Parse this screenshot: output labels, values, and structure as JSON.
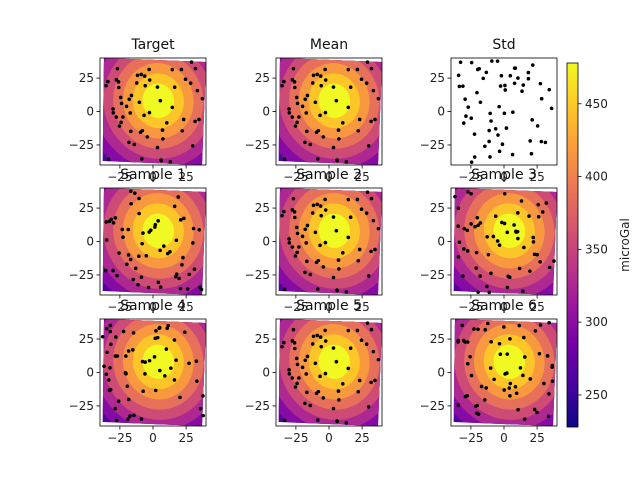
{
  "chart_data": {
    "type": "heatmap",
    "colormap": "plasma",
    "point_color": "#000000",
    "xticks": [
      -25,
      0,
      25
    ],
    "yticks": [
      25,
      0,
      -25
    ],
    "xlim": [
      -40,
      40
    ],
    "ylim": [
      -40,
      40
    ],
    "panels": [
      {
        "title": "Target",
        "filled": true,
        "seed": 3
      },
      {
        "title": "Mean",
        "filled": true,
        "seed": 3
      },
      {
        "title": "Std",
        "filled": false,
        "seed": 7
      },
      {
        "title": "Sample 1",
        "filled": true,
        "seed": 11
      },
      {
        "title": "Sample 2",
        "filled": true,
        "seed": 3
      },
      {
        "title": "Sample 3",
        "filled": true,
        "seed": 19
      },
      {
        "title": "Sample 4",
        "filled": true,
        "seed": 23
      },
      {
        "title": "Sample 5",
        "filled": true,
        "seed": 3
      },
      {
        "title": "Sample 6",
        "filled": true,
        "seed": 31
      }
    ],
    "colorbar": {
      "label": "microGal",
      "min": 228,
      "max": 478,
      "ticks": [
        250,
        300,
        350,
        400,
        450
      ]
    }
  }
}
